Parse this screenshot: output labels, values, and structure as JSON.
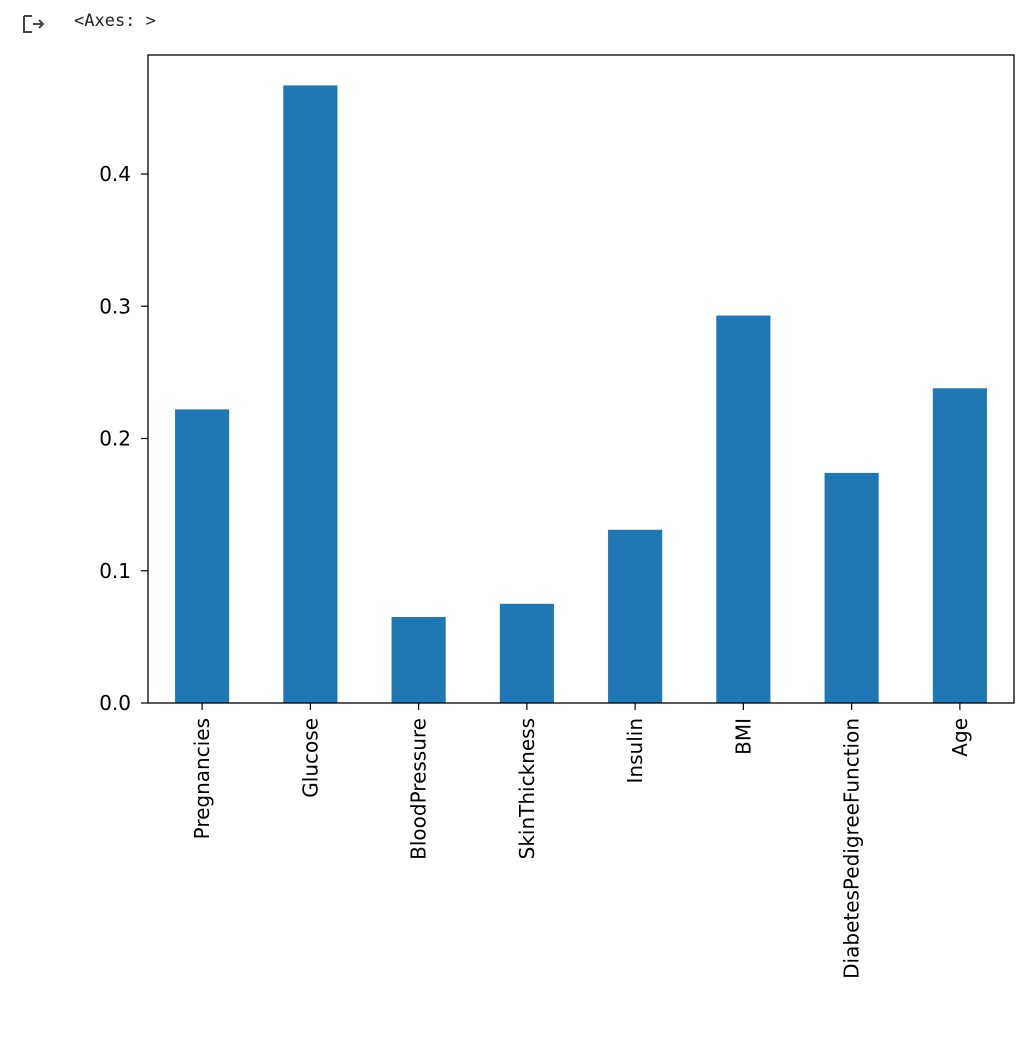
{
  "output": {
    "prompt_icon": "output-arrow-icon",
    "text": "<Axes: >"
  },
  "chart_data": {
    "type": "bar",
    "categories": [
      "Pregnancies",
      "Glucose",
      "BloodPressure",
      "SkinThickness",
      "Insulin",
      "BMI",
      "DiabetesPedigreeFunction",
      "Age"
    ],
    "values": [
      0.222,
      0.467,
      0.065,
      0.075,
      0.131,
      0.293,
      0.174,
      0.238
    ],
    "yticks": [
      0.0,
      0.1,
      0.2,
      0.3,
      0.4
    ],
    "ytick_labels": [
      "0.0",
      "0.1",
      "0.2",
      "0.3",
      "0.4"
    ],
    "ylim": [
      0,
      0.49
    ],
    "title": "",
    "xlabel": "",
    "ylabel": "",
    "grid": false,
    "bar_color": "#1f77b4",
    "x_tick_rotation": "vertical"
  }
}
